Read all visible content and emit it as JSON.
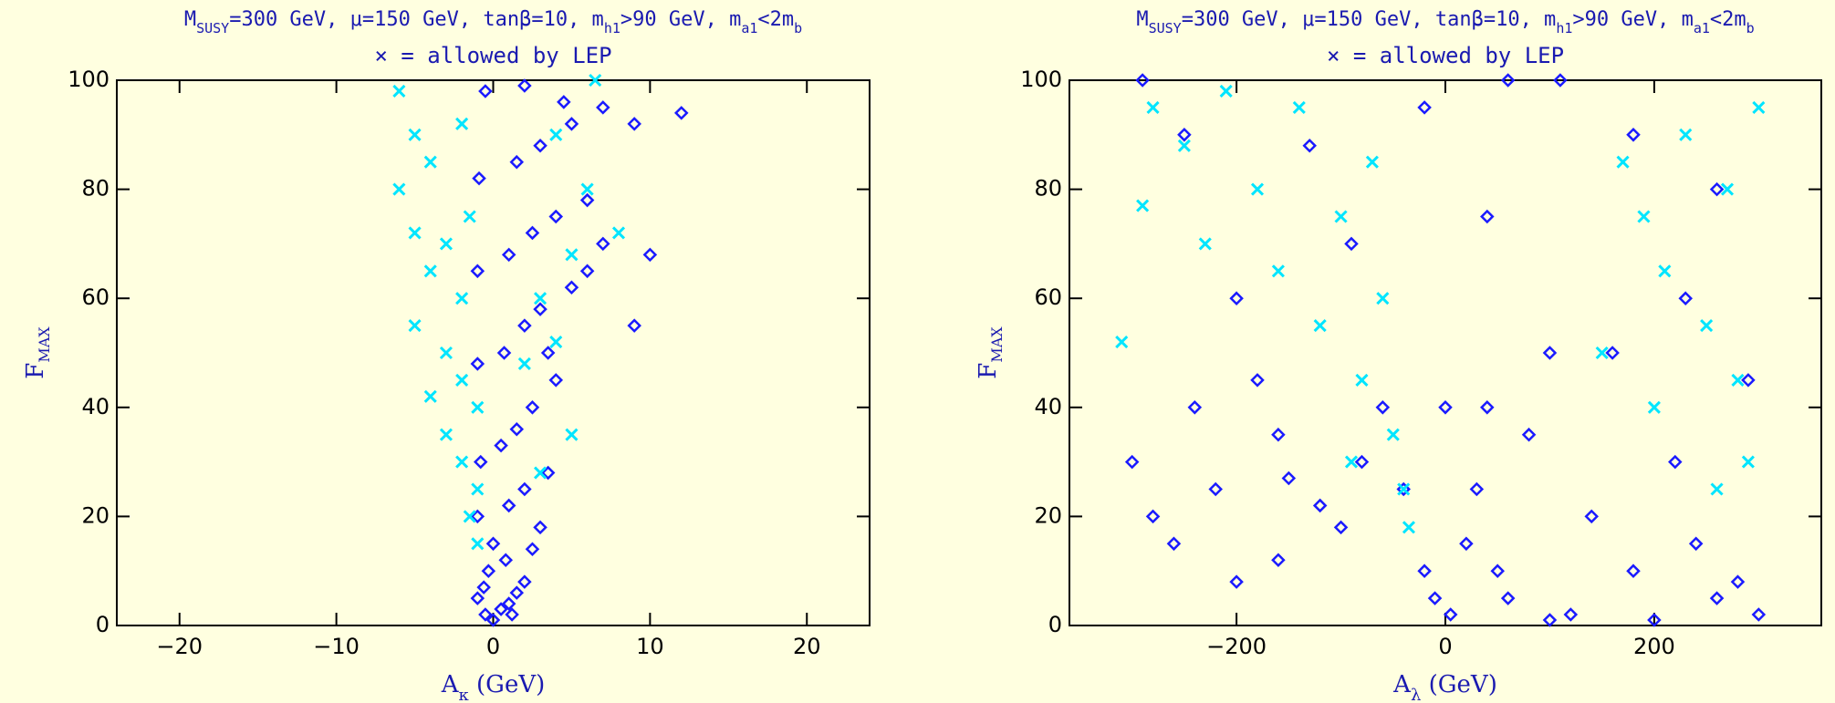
{
  "chart_data": [
    {
      "type": "scatter",
      "title": [
        "M",
        "SUSY",
        "=300 GeV, μ=150 GeV, tanβ=10, m",
        "h1",
        ">90 GeV, m",
        "a1",
        "<2m",
        "b"
      ],
      "annotation": "× = allowed by LEP",
      "xlabel": [
        "A",
        "κ",
        " (GeV)"
      ],
      "ylabel": [
        "F",
        "MAX"
      ],
      "xlim": [
        -24,
        24
      ],
      "ylim": [
        0,
        100
      ],
      "xticks": [
        {
          "value": -20,
          "label": "−20"
        },
        {
          "value": -10,
          "label": "−10"
        },
        0,
        10,
        20
      ],
      "yticks": [
        0,
        20,
        40,
        60,
        80,
        100
      ],
      "series": [
        {
          "marker": "diamond",
          "color": "#1a1aff",
          "x": [
            -0.5,
            0,
            0.5,
            -1,
            1,
            1.5,
            2,
            -0.3,
            0.8,
            2.5,
            3,
            -1,
            1,
            2,
            3.5,
            -0.8,
            0.5,
            1.5,
            2.5,
            4,
            -1,
            0.7,
            2,
            3,
            5,
            -1,
            1,
            2.5,
            4,
            6,
            -0.9,
            1.5,
            3,
            5,
            7,
            -0.5,
            2,
            4.5,
            9,
            12,
            10,
            9,
            7,
            6,
            3.5,
            0,
            -0.6,
            1.2
          ],
          "y": [
            2,
            1,
            3,
            5,
            4,
            6,
            8,
            10,
            12,
            14,
            18,
            20,
            22,
            25,
            28,
            30,
            33,
            36,
            40,
            45,
            48,
            50,
            55,
            58,
            62,
            65,
            68,
            72,
            75,
            78,
            82,
            85,
            88,
            92,
            95,
            98,
            99,
            96,
            92,
            94,
            68,
            55,
            70,
            65,
            50,
            15,
            7,
            2
          ]
        },
        {
          "marker": "x",
          "color": "#00e5ff",
          "x": [
            -6,
            -5,
            -4,
            -6,
            -5,
            -3,
            -4,
            -2,
            -5,
            -3,
            -2,
            -4,
            -1,
            -3,
            -2,
            -1,
            -1.5,
            -1,
            2,
            4,
            3,
            5,
            6,
            4,
            6.5,
            8,
            5,
            3,
            -2,
            -1.5
          ],
          "y": [
            98,
            90,
            85,
            80,
            72,
            70,
            65,
            60,
            55,
            50,
            45,
            42,
            40,
            35,
            30,
            25,
            20,
            15,
            48,
            52,
            60,
            68,
            80,
            90,
            100,
            72,
            35,
            28,
            92,
            75
          ]
        }
      ]
    },
    {
      "type": "scatter",
      "title": [
        "M",
        "SUSY",
        "=300 GeV, μ=150 GeV, tanβ=10, m",
        "h1",
        ">90 GeV, m",
        "a1",
        "<2m",
        "b"
      ],
      "annotation": "× = allowed by LEP",
      "xlabel": [
        "A",
        "λ",
        " (GeV)"
      ],
      "ylabel": [
        "F",
        "MAX"
      ],
      "xlim": [
        -360,
        360
      ],
      "ylim": [
        0,
        100
      ],
      "xticks": [
        {
          "value": -200,
          "label": "−200"
        },
        0,
        200
      ],
      "yticks": [
        0,
        20,
        40,
        60,
        80,
        100
      ],
      "series": [
        {
          "marker": "diamond",
          "color": "#1a1aff",
          "x": [
            -300,
            -280,
            -260,
            -240,
            -220,
            -200,
            -180,
            -160,
            -150,
            -120,
            -100,
            -80,
            -60,
            -40,
            -20,
            -10,
            5,
            20,
            30,
            40,
            50,
            60,
            80,
            100,
            120,
            140,
            160,
            180,
            200,
            220,
            240,
            260,
            280,
            300,
            290,
            260,
            230,
            180,
            110,
            60,
            -20,
            -90,
            -130,
            -250,
            -290,
            -200,
            -160,
            0,
            40,
            100
          ],
          "y": [
            30,
            20,
            15,
            40,
            25,
            60,
            45,
            35,
            27,
            22,
            18,
            30,
            40,
            25,
            10,
            5,
            2,
            15,
            25,
            40,
            10,
            5,
            35,
            1,
            2,
            20,
            50,
            10,
            1,
            30,
            15,
            5,
            8,
            2,
            45,
            80,
            60,
            90,
            100,
            100,
            95,
            70,
            88,
            90,
            100,
            8,
            12,
            40,
            75,
            50
          ]
        },
        {
          "marker": "x",
          "color": "#00e5ff",
          "x": [
            -310,
            -290,
            -280,
            -250,
            -230,
            -210,
            -180,
            -160,
            -140,
            -120,
            -100,
            -80,
            -70,
            -60,
            -50,
            -40,
            -35,
            -90,
            170,
            190,
            210,
            230,
            250,
            270,
            280,
            290,
            300,
            260,
            150,
            200
          ],
          "y": [
            52,
            77,
            95,
            88,
            70,
            98,
            80,
            65,
            95,
            55,
            75,
            45,
            85,
            60,
            35,
            25,
            18,
            30,
            85,
            75,
            65,
            90,
            55,
            80,
            45,
            30,
            95,
            25,
            50,
            40
          ]
        }
      ]
    }
  ]
}
